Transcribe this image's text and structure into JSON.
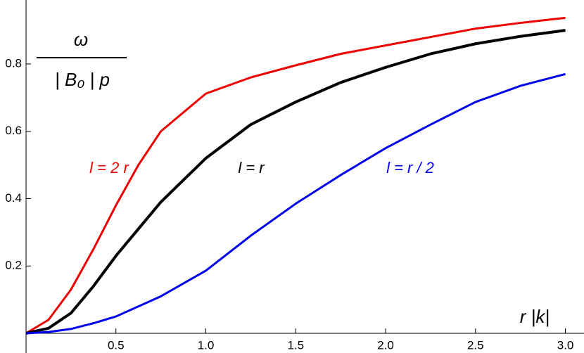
{
  "chart_data": {
    "type": "line",
    "y_label_numerator": "ω",
    "y_label_denominator": "| B₀ | p",
    "x_label": "r |k|",
    "x": [
      0,
      0.125,
      0.25,
      0.375,
      0.5,
      0.625,
      0.75,
      1,
      1.25,
      1.5,
      1.75,
      2,
      2.25,
      2.5,
      2.75,
      3
    ],
    "series": [
      {
        "name": "l = 2 r",
        "color": "#ee0000",
        "values": [
          0,
          0.04,
          0.13,
          0.25,
          0.38,
          0.5,
          0.6,
          0.712,
          0.76,
          0.796,
          0.83,
          0.855,
          0.88,
          0.905,
          0.922,
          0.937
        ]
      },
      {
        "name": "l = r",
        "color": "#000000",
        "values": [
          0,
          0.015,
          0.06,
          0.14,
          0.23,
          0.31,
          0.39,
          0.52,
          0.62,
          0.687,
          0.745,
          0.79,
          0.83,
          0.86,
          0.882,
          0.9
        ]
      },
      {
        "name": "l = r / 2",
        "color": "#0000ee",
        "values": [
          0,
          0.004,
          0.013,
          0.03,
          0.05,
          0.08,
          0.11,
          0.186,
          0.29,
          0.385,
          0.47,
          0.55,
          0.62,
          0.687,
          0.735,
          0.77
        ]
      }
    ],
    "xlim": [
      0,
      3.08
    ],
    "ylim": [
      0,
      0.99
    ],
    "xticks": [
      0.5,
      {
        "value": 1,
        "label": "1.0"
      },
      1.5,
      {
        "value": 2,
        "label": "2.0"
      },
      2.5,
      {
        "value": 3,
        "label": "3.0"
      }
    ],
    "yticks": [
      0.2,
      0.4,
      0.6,
      0.8
    ]
  }
}
